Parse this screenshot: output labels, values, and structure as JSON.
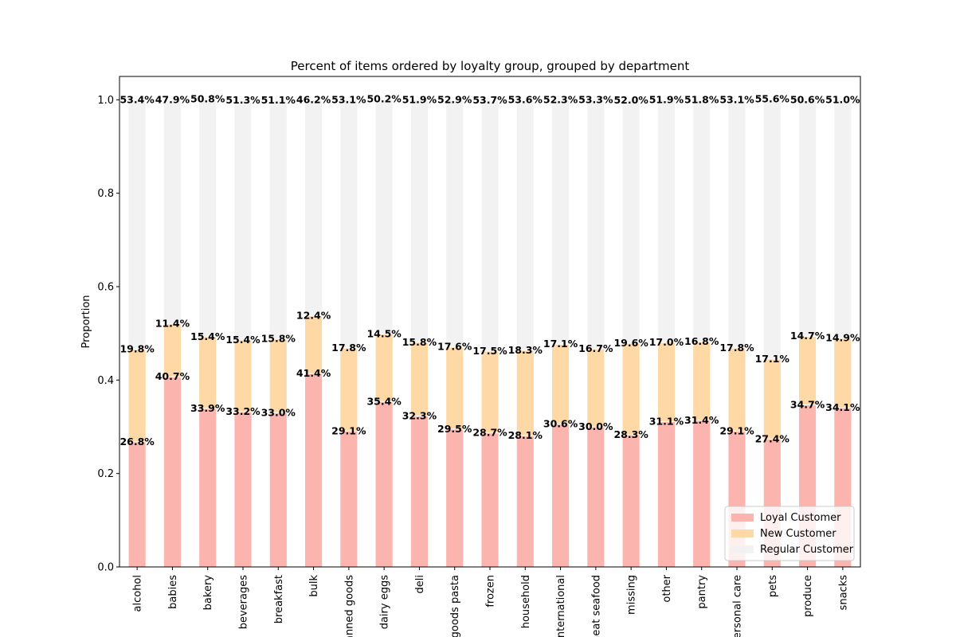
{
  "chart_data": {
    "type": "stacked_bar",
    "title": "Percent of items ordered by loyalty group, grouped by department",
    "y_label": "Proportion",
    "categories": [
      "alcohol",
      "babies",
      "bakery",
      "beverages",
      "breakfast",
      "bulk",
      "canned goods",
      "dairy eggs",
      "deli",
      "dry goods pasta",
      "frozen",
      "household",
      "international",
      "meat seafood",
      "missing",
      "other",
      "pantry",
      "personal care",
      "pets",
      "produce",
      "snacks"
    ],
    "ylim": [
      0,
      1.05
    ],
    "yticks": [
      {
        "value": 0,
        "label": "0.0"
      },
      0.2,
      0.4,
      0.6,
      0.8,
      {
        "value": 1,
        "label": "1.0"
      }
    ],
    "legend": "lower right",
    "series": [
      {
        "name": "Loyal Customer",
        "color": "#fbb4ae",
        "values": [
          0.268,
          0.407,
          0.339,
          0.332,
          0.33,
          0.414,
          0.291,
          0.354,
          0.323,
          0.295,
          0.287,
          0.281,
          0.306,
          0.3,
          0.283,
          0.311,
          0.314,
          0.291,
          0.274,
          0.347,
          0.341
        ],
        "value_labels": [
          "26.8%",
          "40.7%",
          "33.9%",
          "33.2%",
          "33.0%",
          "41.4%",
          "29.1%",
          "35.4%",
          "32.3%",
          "29.5%",
          "28.7%",
          "28.1%",
          "30.6%",
          "30.0%",
          "28.3%",
          "31.1%",
          "31.4%",
          "29.1%",
          "27.4%",
          "34.7%",
          "34.1%"
        ]
      },
      {
        "name": "New Customer",
        "color": "#fed9a6",
        "values": [
          0.198,
          0.114,
          0.154,
          0.154,
          0.158,
          0.124,
          0.178,
          0.145,
          0.158,
          0.176,
          0.175,
          0.183,
          0.171,
          0.167,
          0.196,
          0.17,
          0.168,
          0.178,
          0.171,
          0.147,
          0.149
        ],
        "value_labels": [
          "19.8%",
          "11.4%",
          "15.4%",
          "15.4%",
          "15.8%",
          "12.4%",
          "17.8%",
          "14.5%",
          "15.8%",
          "17.6%",
          "17.5%",
          "18.3%",
          "17.1%",
          "16.7%",
          "19.6%",
          "17.0%",
          "16.8%",
          "17.8%",
          "17.1%",
          "14.7%",
          "14.9%"
        ]
      },
      {
        "name": "Regular Customer",
        "color": "#f2f2f2",
        "values": [
          0.534,
          0.479,
          0.508,
          0.513,
          0.511,
          0.462,
          0.531,
          0.502,
          0.519,
          0.529,
          0.537,
          0.536,
          0.523,
          0.533,
          0.52,
          0.519,
          0.518,
          0.531,
          0.556,
          0.506,
          0.51
        ],
        "value_labels": [
          "53.4%",
          "47.9%",
          "50.8%",
          "51.3%",
          "51.1%",
          "46.2%",
          "53.1%",
          "50.2%",
          "51.9%",
          "52.9%",
          "53.7%",
          "53.6%",
          "52.3%",
          "53.3%",
          "52.0%",
          "51.9%",
          "51.8%",
          "53.1%",
          "55.6%",
          "50.6%",
          "51.0%"
        ]
      }
    ]
  }
}
